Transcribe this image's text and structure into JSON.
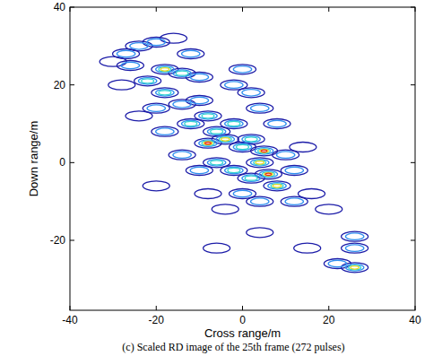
{
  "chart_data": {
    "type": "contour",
    "caption": "(c) Scaled RD image of the 25th frame (272 pulses)",
    "x_label": "Cross range/m",
    "y_label": "Down range/m",
    "xlim": [
      -40,
      40
    ],
    "xticks": [
      -40,
      -20,
      0,
      20,
      40
    ],
    "ylim": [
      -38,
      40
    ],
    "yticks": [
      -20,
      0,
      20,
      40
    ],
    "levels": [
      1,
      2,
      3,
      4,
      5
    ],
    "colors": [
      "#1c1ca8",
      "#2f8ff0",
      "#37d4d0",
      "#e8d820",
      "#e83018"
    ],
    "x": [
      -27,
      -24,
      -20,
      -16,
      -18,
      -14,
      -22,
      -26,
      -30,
      -12,
      -10,
      -28,
      -18,
      -14,
      -20,
      -24,
      -10,
      -8,
      -12,
      -6,
      -8,
      -4,
      -2,
      0,
      2,
      4,
      -2,
      0,
      2,
      5,
      4,
      6,
      8,
      2,
      -2,
      -6,
      -10,
      0,
      4,
      8,
      10,
      12,
      12,
      -4,
      -8,
      16,
      20,
      -14,
      -18,
      26,
      26,
      26,
      22,
      15,
      -6,
      -20,
      4,
      14
    ],
    "y": [
      28,
      30,
      31,
      32,
      24,
      23,
      21,
      25,
      26,
      28,
      22,
      20,
      18,
      15,
      14,
      12,
      16,
      12,
      10,
      8,
      5,
      6,
      20,
      24,
      18,
      14,
      10,
      4,
      6,
      3,
      0,
      -3,
      -6,
      -4,
      -2,
      0,
      -2,
      -8,
      -10,
      10,
      2,
      -2,
      -10,
      -12,
      -8,
      -8,
      -12,
      2,
      8,
      -19,
      -22,
      -27,
      -26,
      -22,
      -22,
      -6,
      -18,
      4
    ],
    "level": [
      2,
      2,
      2,
      1,
      4,
      3,
      3,
      2,
      1,
      2,
      2,
      1,
      3,
      2,
      2,
      1,
      2,
      3,
      3,
      3,
      5,
      4,
      2,
      2,
      2,
      2,
      3,
      3,
      3,
      5,
      4,
      5,
      4,
      3,
      3,
      3,
      2,
      2,
      2,
      2,
      2,
      2,
      2,
      1,
      1,
      1,
      1,
      2,
      2,
      2,
      2,
      4,
      2,
      1,
      1,
      1,
      1,
      1
    ]
  }
}
